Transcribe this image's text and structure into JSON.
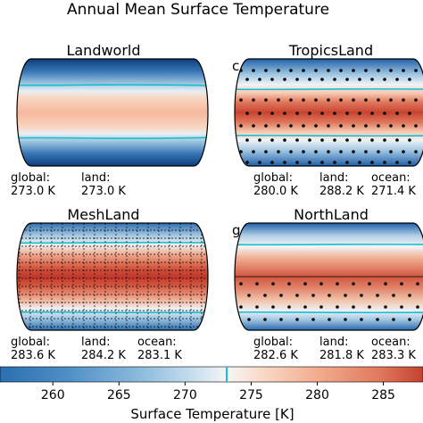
{
  "figure": {
    "title": "Annual Mean Surface Temperature"
  },
  "chart_data": {
    "type": "heatmap",
    "title": "Annual Mean Surface Temperature",
    "panels": [
      {
        "title": "Landworld",
        "label": "",
        "stats": [
          {
            "name": "global:",
            "value": "273.0 K"
          },
          {
            "name": "land:",
            "value": "273.0 K"
          }
        ]
      },
      {
        "title": "TropicsLand",
        "label": "c",
        "stats": [
          {
            "name": "global:",
            "value": "280.0 K"
          },
          {
            "name": "land:",
            "value": "288.2 K"
          },
          {
            "name": "ocean:",
            "value": "271.4 K"
          }
        ]
      },
      {
        "title": "MeshLand",
        "label": "",
        "stats": [
          {
            "name": "global:",
            "value": "283.6 K"
          },
          {
            "name": "land:",
            "value": "284.2 K"
          },
          {
            "name": "ocean:",
            "value": "283.1 K"
          }
        ]
      },
      {
        "title": "NorthLand",
        "label": "g",
        "stats": [
          {
            "name": "global:",
            "value": "282.6 K"
          },
          {
            "name": "land:",
            "value": "281.8 K"
          },
          {
            "name": "ocean:",
            "value": "283.3 K"
          }
        ]
      }
    ],
    "colorbar": {
      "label": "Surface Temperature [K]",
      "ticks": [
        260,
        265,
        270,
        275,
        280,
        285
      ],
      "range": [
        256,
        288
      ],
      "freezing_marker": 273.15,
      "colormap": "RdBu_r"
    }
  },
  "colors": {
    "cold": "#1f5fa8",
    "warm": "#c0392b",
    "contour": "#17becf"
  }
}
